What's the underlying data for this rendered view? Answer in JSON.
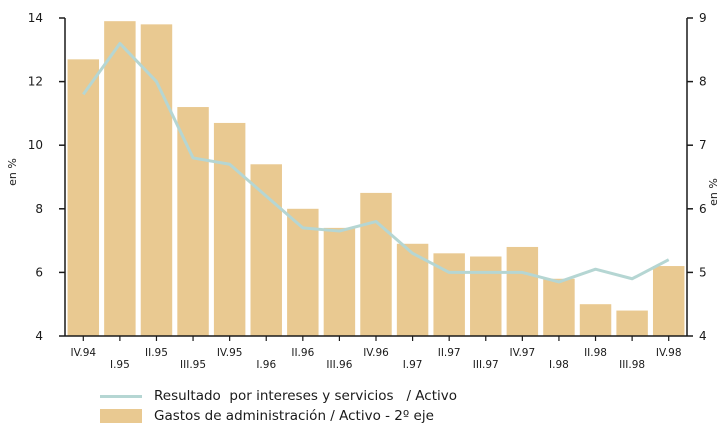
{
  "chart_data": {
    "type": "bar",
    "categories": [
      "IV.94",
      "I.95",
      "II.95",
      "III.95",
      "IV.95",
      "I.96",
      "II.96",
      "III.96",
      "IV.96",
      "I.97",
      "II.97",
      "III.97",
      "IV.97",
      "I.98",
      "II.98",
      "III.98",
      "IV.98"
    ],
    "series": [
      {
        "name": "Gastos de administración / Activo - 2º eje",
        "type": "bar",
        "axis": "left",
        "values": [
          12.7,
          13.9,
          13.8,
          11.2,
          10.7,
          9.4,
          8.0,
          7.4,
          8.5,
          6.9,
          6.6,
          6.5,
          6.8,
          5.8,
          5.0,
          4.8,
          6.2
        ],
        "color": "#e9c991"
      },
      {
        "name": "Resultado  por intereses y servicios   / Activo",
        "type": "line",
        "axis": "right",
        "values": [
          7.8,
          8.6,
          8.0,
          6.8,
          6.7,
          6.2,
          5.7,
          5.65,
          5.8,
          5.3,
          5.0,
          5.0,
          5.0,
          4.85,
          5.05,
          4.9,
          5.2
        ],
        "color": "#b5d6d3"
      }
    ],
    "yleft": {
      "label": "en %",
      "lim": [
        4,
        14
      ],
      "ticks": [
        "4",
        "6",
        "8",
        "10",
        "12",
        "14"
      ]
    },
    "yright": {
      "label": "en %",
      "lim": [
        4,
        9
      ],
      "ticks": [
        "4",
        "5",
        "6",
        "7",
        "8",
        "9"
      ]
    },
    "grid": false,
    "legend": "bottom-left"
  }
}
